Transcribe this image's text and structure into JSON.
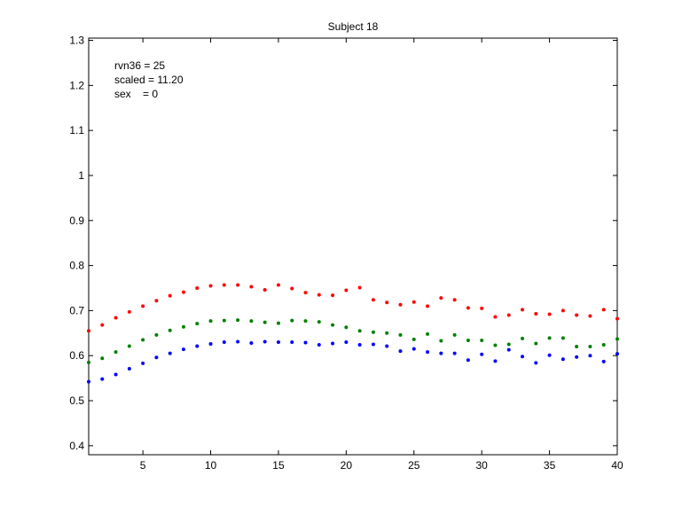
{
  "chart_data": {
    "type": "scatter",
    "title": "Subject 18",
    "xlabel": "",
    "ylabel": "",
    "xlim": [
      1,
      40
    ],
    "ylim": [
      0.38,
      1.305
    ],
    "x_ticks": [
      5,
      10,
      15,
      20,
      25,
      30,
      35,
      40
    ],
    "y_ticks": [
      0.4,
      0.5,
      0.6,
      0.7,
      0.8,
      0.9,
      1,
      1.1,
      1.2,
      1.3
    ],
    "x_tick_labels": [
      "5",
      "10",
      "15",
      "20",
      "25",
      "30",
      "35",
      "40"
    ],
    "y_tick_labels": [
      "0.4",
      "0.5",
      "0.6",
      "0.7",
      "0.8",
      "0.9",
      "1",
      "1.1",
      "1.2",
      "1.3"
    ],
    "grid": false,
    "annotations": [
      "rvn36 = 25",
      "scaled = 11.20",
      "sex    = 0"
    ],
    "x": [
      1,
      2,
      3,
      4,
      5,
      6,
      7,
      8,
      9,
      10,
      11,
      12,
      13,
      14,
      15,
      16,
      17,
      18,
      19,
      20,
      21,
      22,
      23,
      24,
      25,
      26,
      27,
      28,
      29,
      30,
      31,
      32,
      33,
      34,
      35,
      36,
      37,
      38,
      39,
      40
    ],
    "series": [
      {
        "color": "#ff0000",
        "values": [
          0.655,
          0.668,
          0.684,
          0.697,
          0.71,
          0.722,
          0.733,
          0.741,
          0.75,
          0.755,
          0.757,
          0.757,
          0.753,
          0.746,
          0.757,
          0.749,
          0.74,
          0.735,
          0.734,
          0.745,
          0.751,
          0.724,
          0.718,
          0.713,
          0.719,
          0.71,
          0.728,
          0.724,
          0.706,
          0.705,
          0.686,
          0.69,
          0.702,
          0.693,
          0.692,
          0.7,
          0.69,
          0.688,
          0.702,
          0.682
        ]
      },
      {
        "color": "#008000",
        "values": [
          0.585,
          0.594,
          0.608,
          0.621,
          0.635,
          0.646,
          0.656,
          0.664,
          0.671,
          0.677,
          0.678,
          0.679,
          0.677,
          0.674,
          0.672,
          0.678,
          0.677,
          0.675,
          0.668,
          0.663,
          0.655,
          0.652,
          0.65,
          0.646,
          0.636,
          0.648,
          0.633,
          0.646,
          0.634,
          0.634,
          0.623,
          0.625,
          0.638,
          0.627,
          0.639,
          0.639,
          0.62,
          0.62,
          0.624,
          0.637
        ]
      },
      {
        "color": "#0000ff",
        "values": [
          0.542,
          0.548,
          0.558,
          0.571,
          0.583,
          0.596,
          0.605,
          0.614,
          0.621,
          0.626,
          0.63,
          0.631,
          0.628,
          0.631,
          0.63,
          0.63,
          0.629,
          0.624,
          0.627,
          0.63,
          0.624,
          0.625,
          0.621,
          0.61,
          0.615,
          0.608,
          0.605,
          0.605,
          0.59,
          0.603,
          0.588,
          0.613,
          0.598,
          0.584,
          0.601,
          0.592,
          0.597,
          0.6,
          0.587,
          0.604
        ]
      }
    ]
  }
}
